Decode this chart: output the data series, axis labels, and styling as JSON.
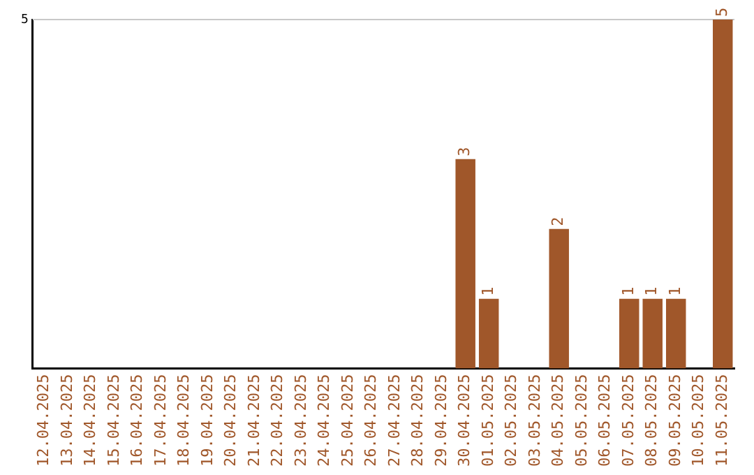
{
  "chart_data": {
    "type": "bar",
    "categories": [
      "12.04.2025",
      "13.04.2025",
      "14.04.2025",
      "15.04.2025",
      "16.04.2025",
      "17.04.2025",
      "18.04.2025",
      "19.04.2025",
      "20.04.2025",
      "21.04.2025",
      "22.04.2025",
      "23.04.2025",
      "24.04.2025",
      "25.04.2025",
      "26.04.2025",
      "27.04.2025",
      "28.04.2025",
      "29.04.2025",
      "30.04.2025",
      "01.05.2025",
      "02.05.2025",
      "03.05.2025",
      "04.05.2025",
      "05.05.2025",
      "06.05.2025",
      "07.05.2025",
      "08.05.2025",
      "09.05.2025",
      "10.05.2025",
      "11.05.2025"
    ],
    "values": [
      null,
      null,
      null,
      null,
      null,
      null,
      null,
      null,
      null,
      null,
      null,
      null,
      null,
      null,
      null,
      null,
      null,
      null,
      3,
      1,
      null,
      null,
      2,
      null,
      null,
      1,
      1,
      1,
      null,
      5
    ],
    "value_labels": [
      null,
      null,
      null,
      null,
      null,
      null,
      null,
      null,
      null,
      null,
      null,
      null,
      null,
      null,
      null,
      null,
      null,
      null,
      "3",
      "1",
      null,
      null,
      "2",
      null,
      null,
      "1",
      "1",
      "1",
      null,
      "5"
    ],
    "color": "#a0572a",
    "ylim": [
      0,
      5
    ],
    "yticks": [
      5
    ]
  }
}
